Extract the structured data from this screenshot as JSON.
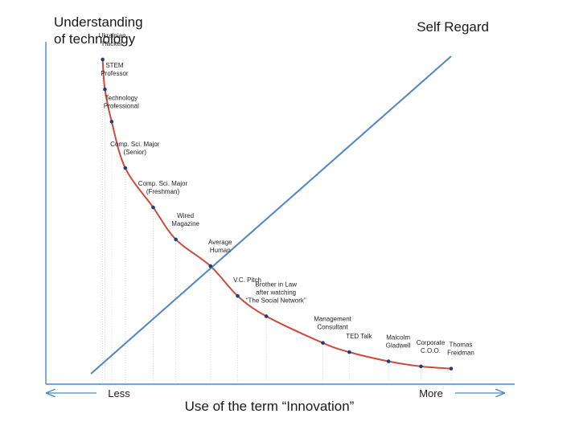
{
  "chart_data": {
    "type": "line",
    "title": "",
    "ylabel": [
      "Understanding",
      "of technology"
    ],
    "xlabel": "Use of the term “Innovation”",
    "x_axis_ends": {
      "less": "Less",
      "more": "More"
    },
    "xlim": [
      0,
      100
    ],
    "ylim": [
      0,
      100
    ],
    "grid": "vertical dotted lines at each point",
    "legend": "none",
    "colors": {
      "curve": "#cc4b3c",
      "diagonal": "#4f86c6",
      "axes": "#4f86c6",
      "arrows": "#4f86c6",
      "points": "#1f3f7a",
      "guides": "#d4d4d4"
    },
    "series": [
      {
        "name": "",
        "style": "curve",
        "points": [
          {
            "x": 7.6,
            "y": 99.0,
            "label": [
              "Ukrainian",
              "Hacker"
            ]
          },
          {
            "x": 8.2,
            "y": 89.6,
            "label": [
              "STEM",
              "Professor"
            ]
          },
          {
            "x": 10.0,
            "y": 79.4,
            "label": [
              "Technology",
              "Professional"
            ]
          },
          {
            "x": 13.6,
            "y": 64.8,
            "label": [
              "Comp. Sci. Major",
              "(Senior)"
            ]
          },
          {
            "x": 21.0,
            "y": 52.4,
            "label": [
              "Comp. Sci. Major",
              "(Freshman)"
            ]
          },
          {
            "x": 27.0,
            "y": 42.3,
            "label": [
              "Wired",
              "Magazine"
            ]
          },
          {
            "x": 36.2,
            "y": 33.9,
            "label": [
              "Average",
              "Human"
            ]
          },
          {
            "x": 43.4,
            "y": 24.5,
            "label": [
              "V.C. Pitch"
            ]
          },
          {
            "x": 51.0,
            "y": 18.1,
            "label": [
              "Brother in Law",
              "after watching",
              "“The Social Network”"
            ]
          },
          {
            "x": 66.0,
            "y": 9.7,
            "label": [
              "Management",
              "Consultant"
            ]
          },
          {
            "x": 73.0,
            "y": 6.8,
            "label": [
              "TED Talk"
            ]
          },
          {
            "x": 83.4,
            "y": 3.9,
            "label": [
              "Malcolm",
              "Gladwell"
            ]
          },
          {
            "x": 92.0,
            "y": 2.3,
            "label": [
              "Corporate",
              "C.O.O."
            ]
          },
          {
            "x": 100.0,
            "y": 1.6,
            "label": [
              "Thomas",
              "Freidman"
            ]
          }
        ]
      },
      {
        "name": "Self Regard",
        "style": "straight",
        "points": [
          {
            "x": 4.5,
            "y": 0.0
          },
          {
            "x": 100.0,
            "y": 100.0
          }
        ]
      }
    ]
  }
}
